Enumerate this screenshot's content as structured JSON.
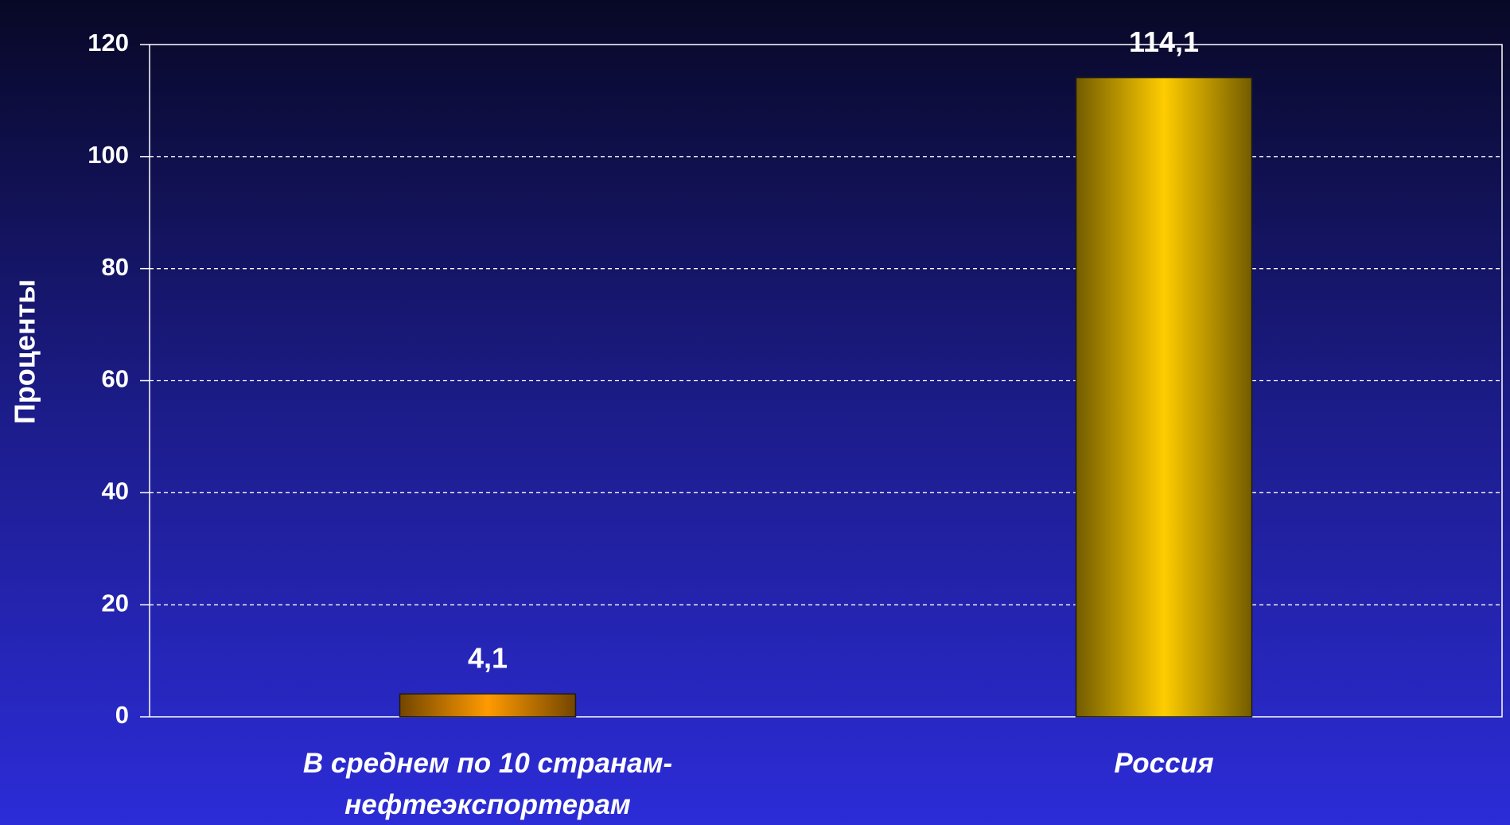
{
  "chart_data": {
    "type": "bar",
    "y_label": "Проценты",
    "categories": [
      "В среднем по 10 странам-\nнефтеэкспортерам",
      "Россия"
    ],
    "values": [
      4.1,
      114.1
    ],
    "value_labels": [
      "4,1",
      "114,1"
    ],
    "colors": [
      "#ff9a00",
      "#ffcc00"
    ],
    "ylim": [
      0,
      120
    ],
    "yticks": [
      0,
      20,
      40,
      60,
      80,
      100,
      120
    ],
    "grid": true
  }
}
